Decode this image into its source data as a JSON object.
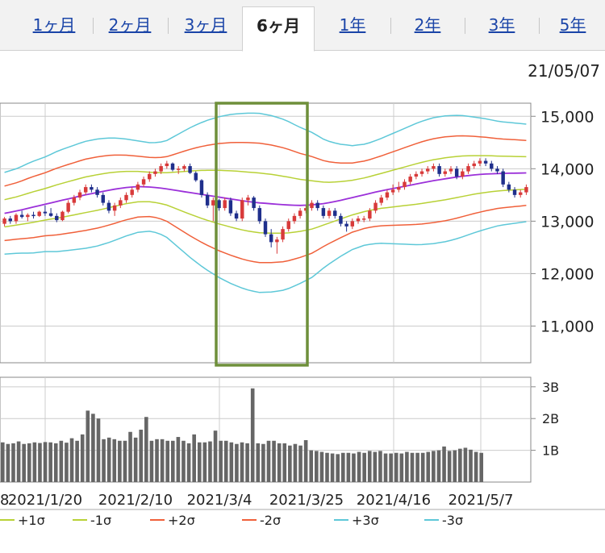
{
  "tabs": [
    {
      "label": "1ヶ月"
    },
    {
      "label": "2ヶ月"
    },
    {
      "label": "3ヶ月"
    },
    {
      "label": "6ヶ月",
      "active": true
    },
    {
      "label": "1年"
    },
    {
      "label": "2年"
    },
    {
      "label": "3年"
    },
    {
      "label": "5年"
    }
  ],
  "date_label": "21/05/07",
  "colors": {
    "up": "#d83a3a",
    "down": "#1f2f8c",
    "sma": "#9b30d9",
    "sigma1": "#b8d136",
    "sigma2": "#f0603a",
    "sigma3": "#5ec8d8",
    "volume": "#666666",
    "highlight": "#6e8f3a",
    "grid": "#cccccc"
  },
  "chart_data": [
    {
      "type": "candlestick",
      "indicator": "bollinger_bands",
      "y_ticks": [
        "15,000",
        "14,000",
        "13,000",
        "12,000",
        "11,000"
      ],
      "y_tick_values": [
        15000,
        14000,
        13000,
        12000,
        11000
      ],
      "ylim": [
        10300,
        15250
      ],
      "highlight_range": [
        "2021/3/4",
        "2021/3/25"
      ],
      "candles": [
        [
          12950,
          13080,
          12900,
          13050
        ],
        [
          13050,
          13100,
          12950,
          13000
        ],
        [
          13000,
          13150,
          12950,
          13120
        ],
        [
          13120,
          13200,
          13050,
          13080
        ],
        [
          13080,
          13150,
          13000,
          13120
        ],
        [
          13120,
          13180,
          13050,
          13100
        ],
        [
          13100,
          13200,
          13080,
          13180
        ],
        [
          13180,
          13300,
          13100,
          13150
        ],
        [
          13150,
          13250,
          13080,
          13100
        ],
        [
          13100,
          13150,
          12980,
          13020
        ],
        [
          13020,
          13200,
          13000,
          13180
        ],
        [
          13180,
          13400,
          13150,
          13350
        ],
        [
          13350,
          13500,
          13300,
          13450
        ],
        [
          13450,
          13600,
          13400,
          13550
        ],
        [
          13550,
          13700,
          13500,
          13650
        ],
        [
          13650,
          13700,
          13550,
          13600
        ],
        [
          13600,
          13650,
          13450,
          13500
        ],
        [
          13500,
          13550,
          13300,
          13350
        ],
        [
          13350,
          13400,
          13150,
          13200
        ],
        [
          13200,
          13350,
          13100,
          13300
        ],
        [
          13300,
          13450,
          13250,
          13400
        ],
        [
          13400,
          13550,
          13350,
          13500
        ],
        [
          13500,
          13650,
          13450,
          13600
        ],
        [
          13600,
          13750,
          13550,
          13700
        ],
        [
          13700,
          13850,
          13650,
          13800
        ],
        [
          13800,
          13950,
          13750,
          13900
        ],
        [
          13900,
          14000,
          13850,
          13950
        ],
        [
          13950,
          14100,
          13900,
          14050
        ],
        [
          14050,
          14150,
          14000,
          14100
        ],
        [
          14100,
          14120,
          13950,
          13980
        ],
        [
          13980,
          14050,
          13900,
          14000
        ],
        [
          14000,
          14080,
          13950,
          14050
        ],
        [
          14050,
          14100,
          13900,
          13920
        ],
        [
          13920,
          13950,
          13750,
          13780
        ],
        [
          13780,
          13800,
          13450,
          13500
        ],
        [
          13500,
          13550,
          13250,
          13300
        ],
        [
          13300,
          13450,
          13000,
          13400
        ],
        [
          13400,
          13420,
          13200,
          13250
        ],
        [
          13250,
          13450,
          13200,
          13400
        ],
        [
          13400,
          13450,
          13100,
          13150
        ],
        [
          13150,
          13200,
          13000,
          13050
        ],
        [
          13050,
          13450,
          13000,
          13400
        ],
        [
          13400,
          13500,
          13300,
          13450
        ],
        [
          13450,
          13480,
          13200,
          13250
        ],
        [
          13250,
          13300,
          12950,
          13000
        ],
        [
          13000,
          13050,
          12700,
          12750
        ],
        [
          12750,
          12850,
          12500,
          12600
        ],
        [
          12600,
          12700,
          12380,
          12650
        ],
        [
          12650,
          12900,
          12600,
          12850
        ],
        [
          12850,
          13050,
          12800,
          13000
        ],
        [
          13000,
          13150,
          12950,
          13100
        ],
        [
          13100,
          13250,
          13050,
          13200
        ],
        [
          13200,
          13300,
          13150,
          13250
        ],
        [
          13250,
          13400,
          13200,
          13350
        ],
        [
          13350,
          13400,
          13200,
          13250
        ],
        [
          13250,
          13300,
          13050,
          13100
        ],
        [
          13100,
          13250,
          13050,
          13200
        ],
        [
          13200,
          13250,
          13050,
          13100
        ],
        [
          13100,
          13150,
          12900,
          12950
        ],
        [
          12950,
          13000,
          12800,
          12900
        ],
        [
          12900,
          13050,
          12850,
          13000
        ],
        [
          13000,
          13100,
          12950,
          13050
        ],
        [
          13050,
          13100,
          12980,
          13050
        ],
        [
          13050,
          13250,
          13000,
          13200
        ],
        [
          13200,
          13400,
          13150,
          13350
        ],
        [
          13350,
          13500,
          13300,
          13450
        ],
        [
          13450,
          13600,
          13400,
          13550
        ],
        [
          13550,
          13700,
          13500,
          13600
        ],
        [
          13600,
          13750,
          13550,
          13650
        ],
        [
          13650,
          13800,
          13600,
          13750
        ],
        [
          13750,
          13900,
          13700,
          13850
        ],
        [
          13850,
          13950,
          13800,
          13900
        ],
        [
          13900,
          14000,
          13850,
          13950
        ],
        [
          13950,
          14050,
          13900,
          14000
        ],
        [
          14000,
          14100,
          13950,
          14050
        ],
        [
          14050,
          14100,
          13850,
          13900
        ],
        [
          13900,
          14000,
          13850,
          13950
        ],
        [
          13950,
          14050,
          13900,
          14000
        ],
        [
          14000,
          14050,
          13800,
          13850
        ],
        [
          13850,
          14000,
          13800,
          13950
        ],
        [
          13950,
          14100,
          13900,
          14050
        ],
        [
          14050,
          14150,
          14000,
          14100
        ],
        [
          14100,
          14200,
          14050,
          14150
        ],
        [
          14150,
          14200,
          14050,
          14100
        ],
        [
          14100,
          14150,
          13950,
          14000
        ],
        [
          14000,
          14050,
          13900,
          13950
        ],
        [
          13950,
          14000,
          13650,
          13700
        ],
        [
          13700,
          13750,
          13550,
          13600
        ],
        [
          13600,
          13650,
          13450,
          13500
        ],
        [
          13500,
          13600,
          13450,
          13550
        ],
        [
          13550,
          13700,
          13500,
          13650
        ]
      ],
      "sma": [
        13150,
        13200,
        13260,
        13320,
        13380,
        13440,
        13500,
        13550,
        13600,
        13640,
        13660,
        13650,
        13620,
        13580,
        13540,
        13500,
        13460,
        13420,
        13380,
        13350,
        13330,
        13310,
        13300,
        13310,
        13340,
        13390,
        13450,
        13510,
        13570,
        13620,
        13670,
        13720,
        13770,
        13810,
        13850,
        13880,
        13900,
        13910,
        13915,
        13920
      ],
      "bands": [
        {
          "name": "+1σ",
          "k": 1
        },
        {
          "name": "-1σ",
          "k": -1
        },
        {
          "name": "+2σ",
          "k": 2
        },
        {
          "name": "-2σ",
          "k": -2
        },
        {
          "name": "+3σ",
          "k": 3
        },
        {
          "name": "-3σ",
          "k": -3
        }
      ],
      "band_width_std": [
        260,
        270,
        290,
        300,
        320,
        330,
        340,
        340,
        330,
        310,
        290,
        280,
        300,
        360,
        420,
        470,
        510,
        540,
        560,
        570,
        560,
        540,
        500,
        460,
        400,
        360,
        330,
        320,
        330,
        350,
        370,
        390,
        400,
        400,
        390,
        370,
        350,
        330,
        320,
        310
      ]
    },
    {
      "type": "bar",
      "name": "volume",
      "y_ticks": [
        "3B",
        "2B",
        "1B"
      ],
      "y_tick_values": [
        3,
        2,
        1
      ],
      "ylim": [
        0,
        3.3
      ],
      "values": [
        1.25,
        1.2,
        1.22,
        1.28,
        1.2,
        1.22,
        1.25,
        1.23,
        1.26,
        1.25,
        1.22,
        1.3,
        1.24,
        1.38,
        1.3,
        1.5,
        2.25,
        2.15,
        2.0,
        1.35,
        1.4,
        1.35,
        1.3,
        1.3,
        1.58,
        1.4,
        1.65,
        2.05,
        1.3,
        1.35,
        1.35,
        1.3,
        1.3,
        1.42,
        1.3,
        1.22,
        1.5,
        1.25,
        1.25,
        1.28,
        1.62,
        1.3,
        1.3,
        1.25,
        1.2,
        1.25,
        1.22,
        2.95,
        1.22,
        1.2,
        1.3,
        1.3,
        1.22,
        1.22,
        1.15,
        1.2,
        1.15,
        1.32,
        1.0,
        0.98,
        0.95,
        0.92,
        0.9,
        0.88,
        0.92,
        0.92,
        0.9,
        0.95,
        0.92,
        0.98,
        0.95,
        0.98,
        0.9,
        0.9,
        0.92,
        0.9,
        0.95,
        0.92,
        0.92,
        0.92,
        0.95,
        0.98,
        1.0,
        1.12,
        0.98,
        1.0,
        1.05,
        1.08,
        1.02,
        0.95,
        0.92
      ],
      "x_labels": [
        "8",
        "2021/1/20",
        "2021/2/10",
        "2021/3/4",
        "2021/3/25",
        "2021/4/16",
        "2021/5/7"
      ]
    }
  ],
  "legend": [
    {
      "label": "+1σ",
      "color_key": "sigma1"
    },
    {
      "label": "-1σ",
      "color_key": "sigma1"
    },
    {
      "label": "+2σ",
      "color_key": "sigma2"
    },
    {
      "label": "-2σ",
      "color_key": "sigma2"
    },
    {
      "label": "+3σ",
      "color_key": "sigma3"
    },
    {
      "label": "-3σ",
      "color_key": "sigma3"
    }
  ]
}
